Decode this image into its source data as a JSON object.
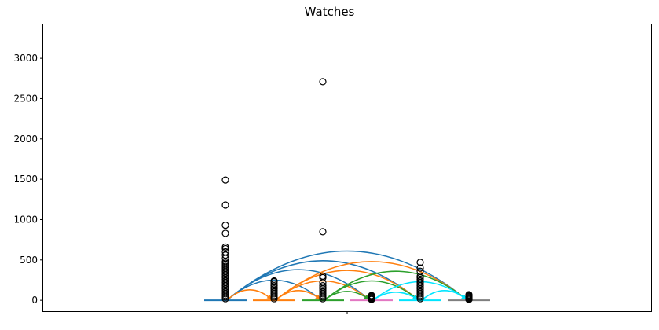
{
  "chart_data": {
    "type": "box",
    "title": "Watches",
    "xlabel": "",
    "ylabel": "",
    "ylim": [
      -135,
      3420
    ],
    "yticks": [
      0,
      500,
      1000,
      1500,
      2000,
      2500,
      3000
    ],
    "ytick_labels": [
      "0",
      "500",
      "1000",
      "1500",
      "2000",
      "2500",
      "3000"
    ],
    "grid": false,
    "legend": "none",
    "groups": [
      {
        "color": "#1f77b4",
        "median": 0,
        "outliers": [
          1490,
          1180,
          930,
          830,
          660,
          640,
          600,
          560,
          520,
          480,
          460,
          440,
          420,
          400,
          380,
          360,
          340,
          320,
          300,
          280,
          260,
          240,
          220,
          200,
          180,
          160,
          140,
          120,
          100,
          80,
          60,
          40,
          20
        ]
      },
      {
        "color": "#ff7f0e",
        "median": 0,
        "outliers": [
          240,
          230,
          200,
          180,
          160,
          140,
          120,
          100,
          80,
          60,
          40,
          20
        ]
      },
      {
        "color": "#2ca02c",
        "median": 0,
        "outliers": [
          2710,
          850,
          300,
          280,
          220,
          180,
          160,
          140,
          120,
          100,
          80,
          60,
          40,
          20
        ]
      },
      {
        "color": "#e377c2",
        "median": 0,
        "outliers": [
          60,
          50,
          40,
          30,
          20,
          10
        ]
      },
      {
        "color": "#00e5ff",
        "median": 0,
        "outliers": [
          470,
          400,
          360,
          300,
          280,
          260,
          240,
          220,
          200,
          180,
          160,
          140,
          120,
          100,
          80,
          60,
          40,
          20
        ]
      },
      {
        "color": "#7f7f7f",
        "median": 0,
        "outliers": [
          70,
          60,
          50,
          40,
          30,
          20,
          10
        ]
      }
    ],
    "arcs": [
      {
        "from": 0,
        "to": 5,
        "color": "#1f77b4",
        "peak": 610
      },
      {
        "from": 0,
        "to": 4,
        "color": "#1f77b4",
        "peak": 490
      },
      {
        "from": 0,
        "to": 3,
        "color": "#1f77b4",
        "peak": 380
      },
      {
        "from": 0,
        "to": 2,
        "color": "#1f77b4",
        "peak": 250
      },
      {
        "from": 0,
        "to": 1,
        "color": "#ff7f0e",
        "peak": 130
      },
      {
        "from": 1,
        "to": 5,
        "color": "#ff7f0e",
        "peak": 480
      },
      {
        "from": 1,
        "to": 4,
        "color": "#ff7f0e",
        "peak": 370
      },
      {
        "from": 1,
        "to": 3,
        "color": "#ff7f0e",
        "peak": 240
      },
      {
        "from": 1,
        "to": 2,
        "color": "#ff7f0e",
        "peak": 120
      },
      {
        "from": 2,
        "to": 5,
        "color": "#2ca02c",
        "peak": 360
      },
      {
        "from": 2,
        "to": 4,
        "color": "#2ca02c",
        "peak": 240
      },
      {
        "from": 2,
        "to": 3,
        "color": "#2ca02c",
        "peak": 110
      },
      {
        "from": 3,
        "to": 5,
        "color": "#00e5ff",
        "peak": 230
      },
      {
        "from": 4,
        "to": 5,
        "color": "#00e5ff",
        "peak": 120
      },
      {
        "from": 3,
        "to": 4,
        "color": "#00e5ff",
        "peak": 100
      }
    ]
  }
}
